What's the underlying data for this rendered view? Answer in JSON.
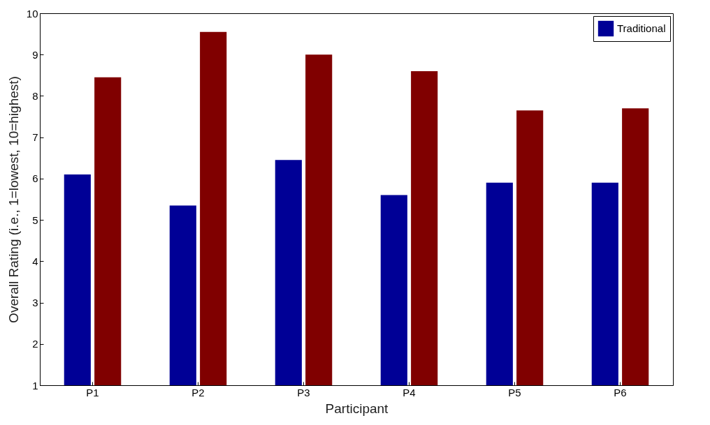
{
  "chart_data": {
    "type": "bar",
    "xlabel": "Participant",
    "ylabel": "Overall Rating (i.e., 1=lowest, 10=highest)",
    "categories": [
      "P1",
      "P2",
      "P3",
      "P4",
      "P5",
      "P6"
    ],
    "series": [
      {
        "name": "Traditional",
        "color": "#000096",
        "values": [
          6.1,
          5.35,
          6.45,
          5.6,
          5.9,
          5.9
        ]
      },
      {
        "color": "#800000",
        "values": [
          8.45,
          9.55,
          9.0,
          8.6,
          7.65,
          7.7
        ]
      }
    ],
    "ylim": [
      1,
      10
    ],
    "yticks": [
      1,
      2,
      3,
      4,
      5,
      6,
      7,
      8,
      9,
      10
    ],
    "grid": false,
    "legend": "top right"
  }
}
